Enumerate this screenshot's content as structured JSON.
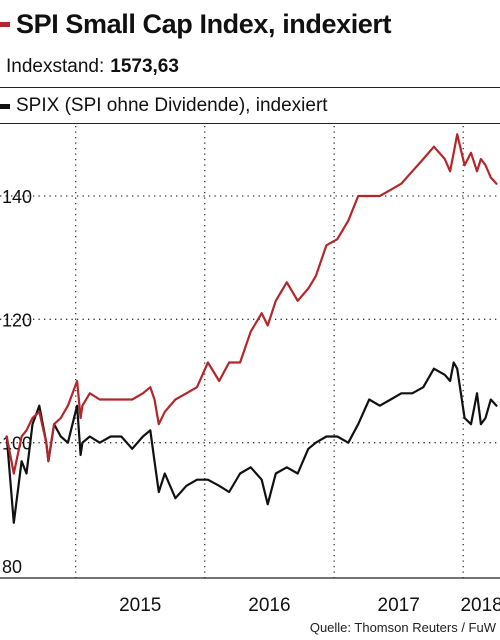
{
  "header": {
    "title": "SPI Small Cap Index, indexiert",
    "index_label": "Indexstand:",
    "index_value": "1573,63",
    "subtitle": "SPIX (SPI ohne Dividende), indexiert",
    "source": "Quelle: Thomson Reuters / FuW"
  },
  "colors": {
    "series_1": "#b3262a",
    "series_2": "#111111"
  },
  "chart_data": {
    "type": "line",
    "ylim": [
      80,
      150
    ],
    "y_ticks": [
      "80",
      "100",
      "120",
      "140"
    ],
    "x_ticks": [
      "2015",
      "2016",
      "2017",
      "2018"
    ],
    "xlim": [
      "2014-06-01",
      "2018-04-15"
    ],
    "grid": true,
    "series": [
      {
        "name": "SPI Small Cap Index, indexiert",
        "x": [
          "2014-06-20",
          "2014-07-10",
          "2014-08-01",
          "2014-08-15",
          "2014-09-01",
          "2014-09-20",
          "2014-10-10",
          "2014-10-16",
          "2014-11-01",
          "2014-11-20",
          "2014-12-10",
          "2015-01-05",
          "2015-01-15",
          "2015-01-20",
          "2015-02-10",
          "2015-03-10",
          "2015-04-10",
          "2015-05-10",
          "2015-06-10",
          "2015-07-10",
          "2015-07-31",
          "2015-08-12",
          "2015-08-24",
          "2015-09-10",
          "2015-10-10",
          "2015-11-10",
          "2015-12-10",
          "2016-01-10",
          "2016-02-11",
          "2016-03-10",
          "2016-04-10",
          "2016-05-10",
          "2016-06-10",
          "2016-06-27",
          "2016-07-20",
          "2016-08-20",
          "2016-09-20",
          "2016-10-20",
          "2016-11-10",
          "2016-12-10",
          "2017-01-10",
          "2017-02-10",
          "2017-03-10",
          "2017-04-10",
          "2017-05-10",
          "2017-06-10",
          "2017-07-10",
          "2017-08-10",
          "2017-09-10",
          "2017-10-10",
          "2017-11-10",
          "2017-11-25",
          "2017-12-05",
          "2017-12-15",
          "2018-01-05",
          "2018-01-23",
          "2018-02-09",
          "2018-02-20",
          "2018-03-05",
          "2018-03-20",
          "2018-04-05"
        ],
        "y": [
          101,
          95,
          101,
          102,
          104,
          105,
          100,
          97,
          103,
          104,
          106,
          110,
          104,
          106,
          108,
          107,
          107,
          107,
          107,
          108,
          109,
          107,
          103,
          105,
          107,
          108,
          109,
          113,
          110,
          113,
          113,
          118,
          121,
          119,
          123,
          126,
          123,
          125,
          127,
          132,
          133,
          136,
          140,
          140,
          140,
          141,
          142,
          144,
          146,
          148,
          146,
          144,
          147,
          150,
          145,
          147,
          144,
          146,
          145,
          143,
          142
        ]
      },
      {
        "name": "SPIX (SPI ohne Dividende), indexiert",
        "x": [
          "2014-06-20",
          "2014-07-10",
          "2014-08-01",
          "2014-08-15",
          "2014-09-01",
          "2014-09-20",
          "2014-10-10",
          "2014-10-16",
          "2014-11-01",
          "2014-11-20",
          "2014-12-10",
          "2015-01-05",
          "2015-01-15",
          "2015-01-20",
          "2015-02-10",
          "2015-03-10",
          "2015-04-10",
          "2015-05-10",
          "2015-06-10",
          "2015-07-10",
          "2015-07-31",
          "2015-08-12",
          "2015-08-24",
          "2015-09-10",
          "2015-10-10",
          "2015-11-10",
          "2015-12-10",
          "2016-01-10",
          "2016-02-11",
          "2016-03-10",
          "2016-04-10",
          "2016-05-10",
          "2016-06-10",
          "2016-06-27",
          "2016-07-20",
          "2016-08-20",
          "2016-09-20",
          "2016-10-20",
          "2016-11-10",
          "2016-12-10",
          "2017-01-10",
          "2017-02-10",
          "2017-03-10",
          "2017-04-10",
          "2017-05-10",
          "2017-06-10",
          "2017-07-10",
          "2017-08-10",
          "2017-09-10",
          "2017-10-10",
          "2017-11-10",
          "2017-11-25",
          "2017-12-05",
          "2017-12-15",
          "2018-01-05",
          "2018-01-23",
          "2018-02-09",
          "2018-02-20",
          "2018-03-05",
          "2018-03-20",
          "2018-04-05"
        ],
        "y": [
          101,
          87,
          97,
          95,
          103,
          106,
          100,
          97,
          103,
          101,
          100,
          106,
          98,
          100,
          101,
          100,
          101,
          101,
          99,
          101,
          102,
          97,
          92,
          95,
          91,
          93,
          94,
          94,
          93,
          92,
          95,
          96,
          94,
          90,
          95,
          96,
          95,
          99,
          100,
          101,
          101,
          100,
          103,
          107,
          106,
          107,
          108,
          108,
          109,
          112,
          111,
          110,
          113,
          112,
          104,
          103,
          108,
          103,
          104,
          107,
          106
        ]
      }
    ]
  }
}
